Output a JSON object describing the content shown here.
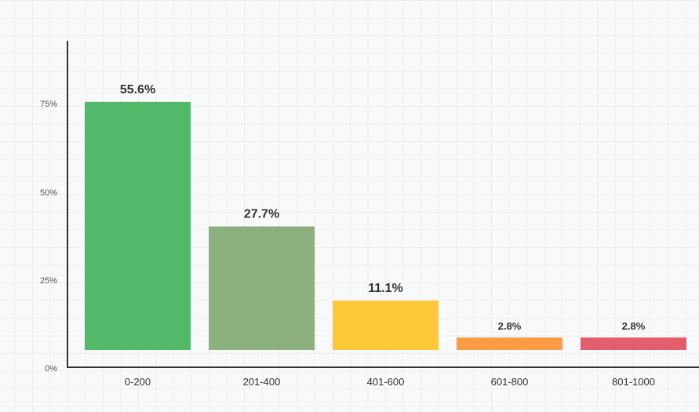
{
  "chart_data": {
    "type": "bar",
    "categories": [
      "0-200",
      "201-400",
      "401-600",
      "601-800",
      "801-1000"
    ],
    "values": [
      55.6,
      27.7,
      11.1,
      2.8,
      2.8
    ],
    "data_labels": [
      "55.6%",
      "27.7%",
      "11.1%",
      "2.8%",
      "2.8%"
    ],
    "colors": [
      "#52b96a",
      "#8db07f",
      "#ffc83a",
      "#fc9b46",
      "#e35e6d"
    ],
    "yticks": [
      "0%",
      "25%",
      "50%",
      "75%"
    ],
    "title": "",
    "xlabel": "",
    "ylabel": "",
    "grid": true,
    "legend": "none"
  }
}
